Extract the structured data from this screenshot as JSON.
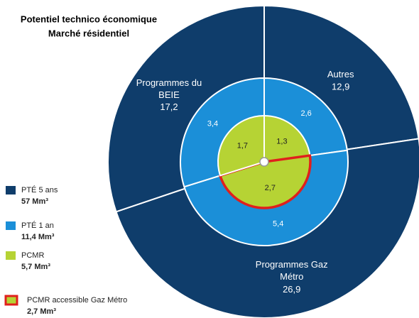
{
  "chart_data": {
    "type": "pie",
    "title": "Potentiel technico économique",
    "subtitle": "Marché résidentiel",
    "categories": [
      "Autres",
      "Programmes Gaz Métro",
      "Programmes du BEIE"
    ],
    "series": [
      {
        "name": "PTÉ 5 ans",
        "total_label": "57 Mm³",
        "color": "#0f3d6b",
        "values": [
          12.9,
          26.9,
          17.2
        ],
        "value_labels": [
          "12,9",
          "26,9",
          "17,2"
        ]
      },
      {
        "name": "PTÉ 1 an",
        "total_label": "11,4 Mm³",
        "color": "#1b8fd8",
        "values": [
          2.6,
          5.4,
          3.4
        ],
        "value_labels": [
          "2,6",
          "5,4",
          "3,4"
        ]
      },
      {
        "name": "PCMR",
        "total_label": "5,7 Mm³",
        "color": "#b6d334",
        "values": [
          1.3,
          2.7,
          1.7
        ],
        "value_labels": [
          "1,3",
          "2,7",
          "1,7"
        ]
      }
    ],
    "highlight": {
      "name": "PCMR accessible Gaz Métro",
      "total_label": "2,7 Mm³",
      "color": "#e0201c",
      "slice": 1
    }
  }
}
